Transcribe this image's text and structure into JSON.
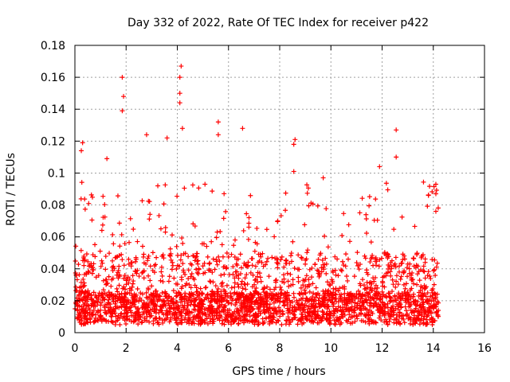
{
  "chart_data": {
    "type": "scatter",
    "title": "Day 332 of 2022, Rate Of TEC Index for receiver p422",
    "xlabel": "GPS time / hours",
    "ylabel": "ROTI / TECUs",
    "xlim": [
      0,
      16
    ],
    "ylim": [
      0,
      0.18
    ],
    "xticks": [
      "0",
      "2",
      "4",
      "6",
      "8",
      "10",
      "12",
      "14",
      "16"
    ],
    "yticks": [
      "0",
      "0.02",
      "0.04",
      "0.06",
      "0.08",
      "0.1",
      "0.12",
      "0.14",
      "0.16",
      "0.18"
    ],
    "grid": true,
    "marker": "+",
    "color": "#ff0000",
    "data_extent_hours": [
      0,
      14.2
    ],
    "series": [
      {
        "name": "ROTI",
        "notable_points": [
          [
            0.3,
            0.119
          ],
          [
            0.25,
            0.114
          ],
          [
            1.25,
            0.109
          ],
          [
            1.85,
            0.16
          ],
          [
            1.9,
            0.148
          ],
          [
            1.85,
            0.139
          ],
          [
            2.8,
            0.124
          ],
          [
            3.6,
            0.122
          ],
          [
            4.15,
            0.167
          ],
          [
            4.1,
            0.16
          ],
          [
            4.1,
            0.15
          ],
          [
            4.1,
            0.144
          ],
          [
            4.2,
            0.128
          ],
          [
            5.6,
            0.132
          ],
          [
            5.6,
            0.124
          ],
          [
            6.55,
            0.128
          ],
          [
            8.6,
            0.121
          ],
          [
            8.55,
            0.118
          ],
          [
            8.55,
            0.101
          ],
          [
            9.7,
            0.097
          ],
          [
            11.9,
            0.104
          ],
          [
            12.55,
            0.127
          ],
          [
            12.55,
            0.11
          ],
          [
            14.1,
            0.093
          ],
          [
            14.1,
            0.087
          ],
          [
            14.1,
            0.076
          ]
        ]
      }
    ]
  }
}
